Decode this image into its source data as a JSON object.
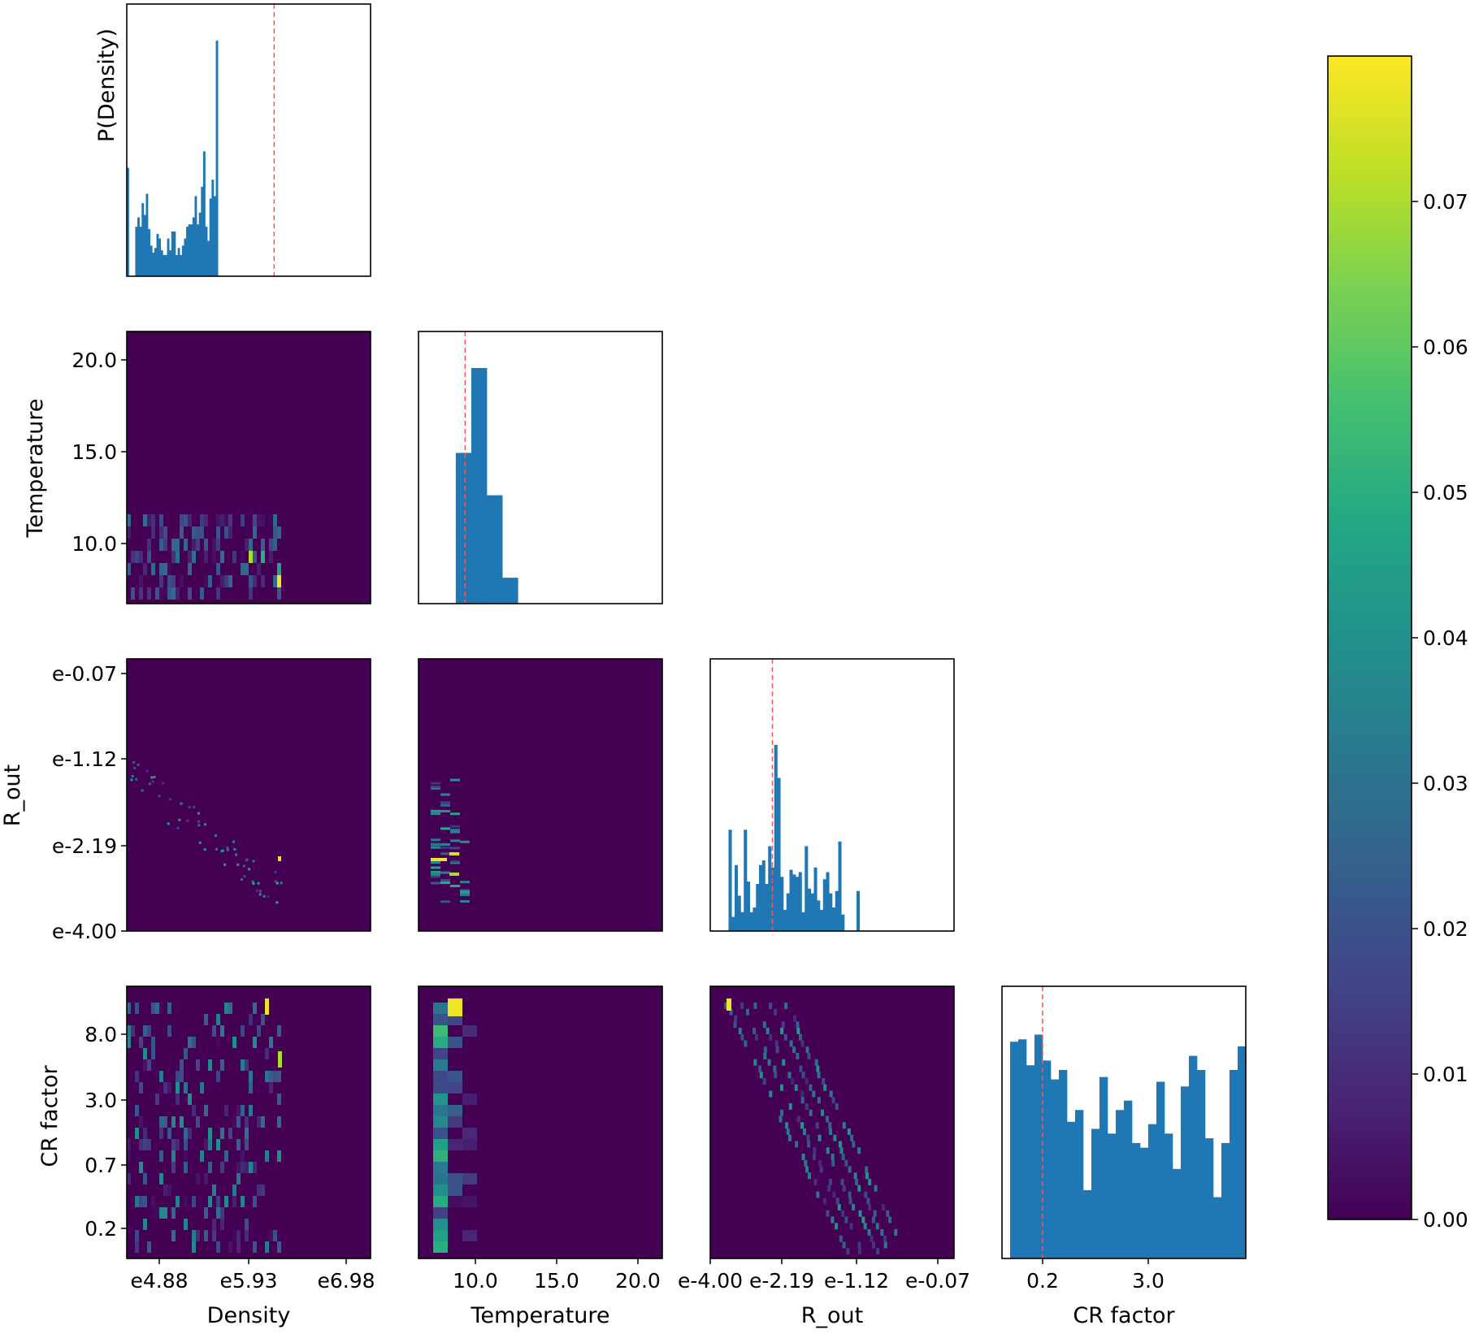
{
  "chart_data": {
    "type": "corner-plot",
    "parameters": [
      "Density",
      "Temperature",
      "R_out",
      "CR factor"
    ],
    "colors": {
      "histogram": "#1f77b4",
      "marker": "#ff5555",
      "viridis": [
        "#440154",
        "#482475",
        "#414487",
        "#355f8d",
        "#2a788e",
        "#21918c",
        "#22a884",
        "#44bf70",
        "#7ad151",
        "#bddf26",
        "#fde725"
      ]
    },
    "diagonal": [
      {
        "param": "Density",
        "ylabel": "P(Density)",
        "xlim": [
          4.7,
          7.0
        ],
        "bins_start": 4.7,
        "bins_width": 0.02,
        "counts": [
          0.46,
          0.0,
          0.0,
          0.0,
          0.21,
          0.25,
          0.21,
          0.31,
          0.26,
          0.35,
          0.2,
          0.13,
          0.1,
          0.12,
          0.18,
          0.16,
          0.11,
          0.09,
          0.09,
          0.16,
          0.11,
          0.19,
          0.19,
          0.09,
          0.12,
          0.09,
          0.13,
          0.16,
          0.21,
          0.22,
          0.22,
          0.25,
          0.34,
          0.22,
          0.27,
          0.38,
          0.53,
          0.21,
          0.15,
          0.33,
          0.41,
          0.34,
          1.0
        ],
        "marker": 6.09
      },
      {
        "param": "Temperature",
        "xlim": [
          5.6,
          21.3
        ],
        "bins_start": 7.0,
        "bins_width": 1.0,
        "counts": [
          0.0,
          0.64,
          1.0,
          0.46,
          0.11
        ],
        "marker": 8.6
      },
      {
        "param": "R_out",
        "xlim": [
          -4.0,
          0.0
        ],
        "bins_start": -3.7,
        "bins_width": 0.05,
        "counts": [
          0.43,
          0.06,
          0.28,
          0.15,
          0.08,
          0.43,
          0.21,
          0.08,
          0.1,
          0.2,
          0.28,
          0.3,
          0.2,
          0.36,
          0.27,
          0.79,
          0.65,
          0.23,
          0.09,
          0.16,
          0.26,
          0.24,
          0.23,
          0.25,
          0.08,
          0.36,
          0.18,
          0.16,
          0.27,
          0.13,
          0.09,
          0.22,
          0.25,
          0.16,
          0.1,
          0.17,
          0.38,
          0.07,
          0.0,
          0.0,
          0.0,
          0.0,
          0.17
        ],
        "marker": -2.98
      },
      {
        "param": "CR factor",
        "xlim": [
          -1.2,
          4.8
        ],
        "bins_start": -1.0,
        "bins_width": 0.2,
        "counts": [
          0.92,
          0.93,
          0.82,
          0.95,
          0.84,
          0.76,
          0.8,
          0.58,
          0.63,
          0.29,
          0.55,
          0.77,
          0.53,
          0.63,
          0.67,
          0.49,
          0.47,
          0.57,
          0.75,
          0.53,
          0.38,
          0.73,
          0.86,
          0.8,
          0.51,
          0.26,
          0.49,
          0.8,
          0.9
        ],
        "marker": -0.2
      }
    ],
    "off_diagonal_panels": [
      {
        "row": 1,
        "col": 0,
        "x": "Density",
        "y": "Temperature",
        "ylim": [
          5.8,
          21.6
        ],
        "cells": "sparse density map"
      },
      {
        "row": 2,
        "col": 0,
        "x": "Density",
        "y": "R_out",
        "ylim": [
          -4.0,
          0.1
        ]
      },
      {
        "row": 2,
        "col": 1,
        "x": "Temperature",
        "y": "R_out"
      },
      {
        "row": 3,
        "col": 0,
        "x": "Density",
        "y": "CR factor",
        "ylim": [
          -1.3,
          11.0
        ]
      },
      {
        "row": 3,
        "col": 1,
        "x": "Temperature",
        "y": "CR factor"
      },
      {
        "row": 3,
        "col": 2,
        "x": "R_out",
        "y": "CR factor"
      }
    ],
    "x_ticks": [
      [
        "e4.88",
        "e5.93",
        "e6.98"
      ],
      [
        "10.0",
        "15.0",
        "20.0"
      ],
      [
        "e-4.00",
        "e-2.19",
        "e-1.12",
        "e-0.07"
      ],
      [
        "0.2",
        "3.0"
      ]
    ],
    "y_ticks": {
      "Temperature": [
        "20.0",
        "15.0",
        "10.0"
      ],
      "R_out": [
        "e-0.07",
        "e-1.12",
        "e-2.19",
        "e-4.00"
      ],
      "CR factor": [
        "8.0",
        "3.0",
        "0.7",
        "0.2"
      ]
    },
    "y_labels": [
      "P(Density)",
      "Temperature",
      "R_out",
      "CR factor"
    ],
    "x_labels": [
      "Density",
      "Temperature",
      "R_out",
      "CR factor"
    ],
    "colorbar": {
      "range": [
        0.0,
        0.08
      ],
      "ticks": [
        "0.07",
        "0.06",
        "0.05",
        "0.04",
        "0.03",
        "0.02",
        "0.01",
        "0.00"
      ],
      "tick_values": [
        0.07,
        0.06,
        0.05,
        0.04,
        0.03,
        0.02,
        0.01,
        0.0
      ]
    }
  }
}
